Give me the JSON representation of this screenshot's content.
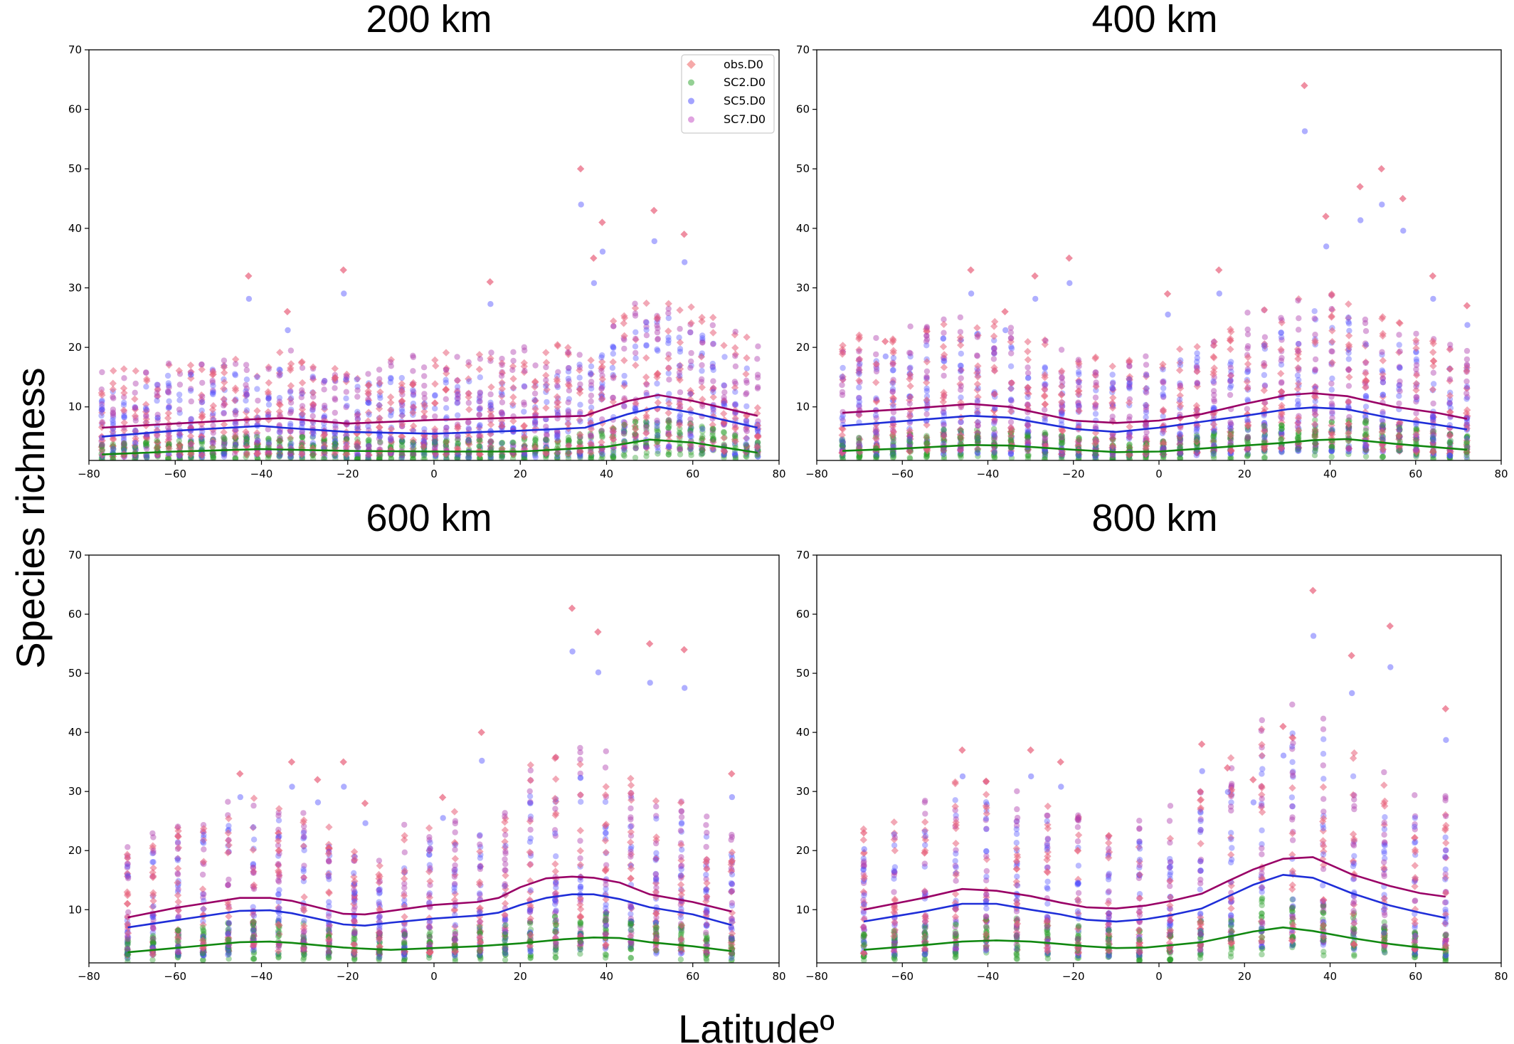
{
  "figure": {
    "ylabel": "Species richness",
    "xlabel": "Latitudeº"
  },
  "legend": {
    "placement": "top-right",
    "entries": [
      {
        "label": "obs.D0",
        "color": "#f07070",
        "marker": "diamond"
      },
      {
        "label": "SC2.D0",
        "color": "#4db04d",
        "marker": "circle"
      },
      {
        "label": "SC5.D0",
        "color": "#6666ff",
        "marker": "circle"
      },
      {
        "label": "SC7.D0",
        "color": "#cc66cc",
        "marker": "circle"
      }
    ]
  },
  "colors": {
    "obs": "#e8607a",
    "sc2": "#2ca02c",
    "sc5": "#4d4dff",
    "sc7": "#b040b0",
    "line_obs": "#990066",
    "line_sc2": "#118811",
    "line_sc5": "#1f2ed8"
  },
  "chart_data": [
    {
      "type": "scatter",
      "title": "200 km",
      "xlim": [
        -80,
        80
      ],
      "ylim": [
        1,
        70
      ],
      "xticks": [
        "−80",
        "−60",
        "−40",
        "−20",
        "0",
        "20",
        "40",
        "60",
        "80"
      ],
      "yticks": [
        "10",
        "20",
        "30",
        "40",
        "50",
        "60",
        "70"
      ],
      "lat_range": [
        -77,
        75
      ],
      "n_lat": 60,
      "obs_peaks": [
        [
          -43,
          32
        ],
        [
          -34,
          26
        ],
        [
          -21,
          33
        ],
        [
          13,
          31
        ],
        [
          34,
          50
        ],
        [
          37,
          35
        ],
        [
          39,
          41
        ],
        [
          51,
          43
        ],
        [
          58,
          39
        ]
      ],
      "series": [
        {
          "name": "obs.D0",
          "x": [
            -77,
            -60,
            -40,
            -35,
            -20,
            0,
            20,
            35,
            45,
            52,
            60,
            75
          ],
          "y": [
            6.5,
            7.2,
            8.0,
            8.1,
            7.2,
            7.8,
            8.2,
            8.5,
            11.0,
            12.0,
            11.0,
            8.5
          ]
        },
        {
          "name": "SC5.D0",
          "x": [
            -77,
            -60,
            -40,
            -35,
            -20,
            0,
            20,
            35,
            45,
            52,
            60,
            75
          ],
          "y": [
            5.0,
            6.0,
            6.8,
            6.5,
            5.8,
            5.5,
            6.0,
            6.5,
            8.8,
            10.0,
            9.0,
            6.5
          ]
        },
        {
          "name": "SC2.D0",
          "x": [
            -77,
            -60,
            -40,
            -20,
            0,
            20,
            40,
            50,
            60,
            75
          ],
          "y": [
            2.0,
            2.5,
            2.9,
            2.6,
            2.5,
            2.5,
            3.3,
            4.5,
            4.0,
            2.3
          ]
        }
      ]
    },
    {
      "type": "scatter",
      "title": "400 km",
      "xlim": [
        -80,
        80
      ],
      "ylim": [
        1,
        70
      ],
      "xticks": [
        "−80",
        "−60",
        "−40",
        "−20",
        "0",
        "20",
        "40",
        "60",
        "80"
      ],
      "yticks": [
        "10",
        "20",
        "30",
        "40",
        "50",
        "60",
        "70"
      ],
      "lat_range": [
        -74,
        72
      ],
      "n_lat": 38,
      "obs_peaks": [
        [
          -64,
          21
        ],
        [
          -44,
          33
        ],
        [
          -36,
          26
        ],
        [
          -29,
          32
        ],
        [
          -21,
          35
        ],
        [
          2,
          29
        ],
        [
          14,
          33
        ],
        [
          34,
          64
        ],
        [
          39,
          42
        ],
        [
          47,
          47
        ],
        [
          52,
          50
        ],
        [
          57,
          45
        ],
        [
          64,
          32
        ],
        [
          72,
          27
        ]
      ],
      "series": [
        {
          "name": "obs.D0",
          "x": [
            -74,
            -60,
            -44,
            -35,
            -20,
            -10,
            0,
            10,
            20,
            30,
            36,
            44,
            55,
            65,
            72
          ],
          "y": [
            9.0,
            9.6,
            10.5,
            10.0,
            7.7,
            7.3,
            7.7,
            8.8,
            10.5,
            12.0,
            12.3,
            11.8,
            10.0,
            9.0,
            8.0
          ]
        },
        {
          "name": "SC5.D0",
          "x": [
            -74,
            -60,
            -44,
            -35,
            -20,
            -10,
            0,
            10,
            20,
            30,
            36,
            44,
            55,
            65,
            72
          ],
          "y": [
            6.8,
            7.6,
            8.5,
            8.2,
            6.3,
            5.8,
            6.5,
            7.5,
            8.5,
            9.6,
            9.9,
            9.6,
            8.0,
            7.0,
            6.2
          ]
        },
        {
          "name": "SC2.D0",
          "x": [
            -74,
            -60,
            -44,
            -35,
            -20,
            -10,
            0,
            10,
            20,
            30,
            36,
            44,
            55,
            65,
            72
          ],
          "y": [
            2.6,
            3.0,
            3.6,
            3.5,
            2.8,
            2.4,
            2.5,
            3.0,
            3.5,
            4.0,
            4.4,
            4.6,
            3.8,
            3.2,
            2.8
          ]
        }
      ]
    },
    {
      "type": "scatter",
      "title": "600 km",
      "xlim": [
        -80,
        80
      ],
      "ylim": [
        1,
        70
      ],
      "xticks": [
        "−80",
        "−60",
        "−40",
        "−20",
        "0",
        "20",
        "40",
        "60",
        "80"
      ],
      "yticks": [
        "10",
        "20",
        "30",
        "40",
        "50",
        "60",
        "70"
      ],
      "lat_range": [
        -71,
        69
      ],
      "n_lat": 25,
      "obs_peaks": [
        [
          -45,
          33
        ],
        [
          -33,
          35
        ],
        [
          -27,
          32
        ],
        [
          -21,
          35
        ],
        [
          -16,
          28
        ],
        [
          2,
          29
        ],
        [
          11,
          40
        ],
        [
          32,
          61
        ],
        [
          38,
          57
        ],
        [
          50,
          55
        ],
        [
          58,
          54
        ],
        [
          69,
          33
        ]
      ],
      "series": [
        {
          "name": "obs.D0",
          "x": [
            -71,
            -60,
            -45,
            -38,
            -33,
            -21,
            -16,
            -10,
            0,
            10,
            15,
            20,
            26,
            32,
            37,
            43,
            50,
            60,
            69
          ],
          "y": [
            8.7,
            10.3,
            12.0,
            12.0,
            11.5,
            9.3,
            9.2,
            9.8,
            10.8,
            11.3,
            12.0,
            13.8,
            15.3,
            15.6,
            15.4,
            14.6,
            12.6,
            11.3,
            9.7
          ]
        },
        {
          "name": "SC5.D0",
          "x": [
            -71,
            -60,
            -45,
            -38,
            -33,
            -21,
            -16,
            -10,
            0,
            10,
            15,
            20,
            26,
            32,
            37,
            43,
            50,
            60,
            69
          ],
          "y": [
            7.0,
            8.2,
            9.8,
            9.9,
            9.4,
            7.5,
            7.3,
            7.8,
            8.5,
            9.0,
            9.5,
            10.8,
            12.0,
            12.6,
            12.6,
            11.8,
            10.4,
            9.2,
            7.4
          ]
        },
        {
          "name": "SC2.D0",
          "x": [
            -71,
            -60,
            -45,
            -38,
            -33,
            -21,
            -16,
            -10,
            0,
            10,
            20,
            30,
            37,
            43,
            50,
            60,
            69
          ],
          "y": [
            2.8,
            3.5,
            4.5,
            4.6,
            4.4,
            3.6,
            3.4,
            3.2,
            3.5,
            3.8,
            4.3,
            5.0,
            5.3,
            5.2,
            4.5,
            3.8,
            3.0
          ]
        }
      ]
    },
    {
      "type": "scatter",
      "title": "800 km",
      "xlim": [
        -80,
        80
      ],
      "ylim": [
        1,
        70
      ],
      "xticks": [
        "−80",
        "−60",
        "−40",
        "−20",
        "0",
        "20",
        "40",
        "60",
        "80"
      ],
      "yticks": [
        "10",
        "20",
        "30",
        "40",
        "50",
        "60",
        "70"
      ],
      "lat_range": [
        -69,
        67
      ],
      "n_lat": 20,
      "obs_peaks": [
        [
          -69,
          23
        ],
        [
          -46,
          37
        ],
        [
          -30,
          37
        ],
        [
          -23,
          35
        ],
        [
          10,
          38
        ],
        [
          16,
          34
        ],
        [
          22,
          32
        ],
        [
          29,
          41
        ],
        [
          36,
          64
        ],
        [
          45,
          53
        ],
        [
          54,
          58
        ],
        [
          67,
          44
        ]
      ],
      "series": [
        {
          "name": "obs.D0",
          "x": [
            -69,
            -55,
            -46,
            -38,
            -30,
            -23,
            -17,
            -10,
            -3,
            3,
            10,
            16,
            22,
            29,
            36,
            45,
            54,
            61,
            67
          ],
          "y": [
            10.0,
            12.0,
            13.5,
            13.2,
            12.3,
            11.2,
            10.4,
            10.2,
            10.7,
            11.5,
            12.7,
            14.8,
            16.8,
            18.6,
            18.9,
            16.0,
            14.0,
            12.8,
            12.2
          ]
        },
        {
          "name": "SC5.D0",
          "x": [
            -69,
            -55,
            -46,
            -38,
            -30,
            -23,
            -17,
            -10,
            -3,
            3,
            10,
            16,
            22,
            29,
            36,
            45,
            54,
            61,
            67
          ],
          "y": [
            8.0,
            9.7,
            11.0,
            11.0,
            10.0,
            9.2,
            8.3,
            8.0,
            8.4,
            9.1,
            10.2,
            12.2,
            14.2,
            15.9,
            15.4,
            12.8,
            10.7,
            9.5,
            8.6
          ]
        },
        {
          "name": "SC2.D0",
          "x": [
            -69,
            -55,
            -46,
            -38,
            -30,
            -23,
            -17,
            -10,
            -3,
            3,
            10,
            16,
            22,
            29,
            36,
            45,
            54,
            61,
            67
          ],
          "y": [
            3.2,
            4.0,
            4.6,
            4.8,
            4.6,
            4.2,
            3.8,
            3.5,
            3.6,
            4.0,
            4.5,
            5.4,
            6.3,
            7.0,
            6.4,
            5.2,
            4.2,
            3.6,
            3.2
          ]
        }
      ]
    }
  ]
}
